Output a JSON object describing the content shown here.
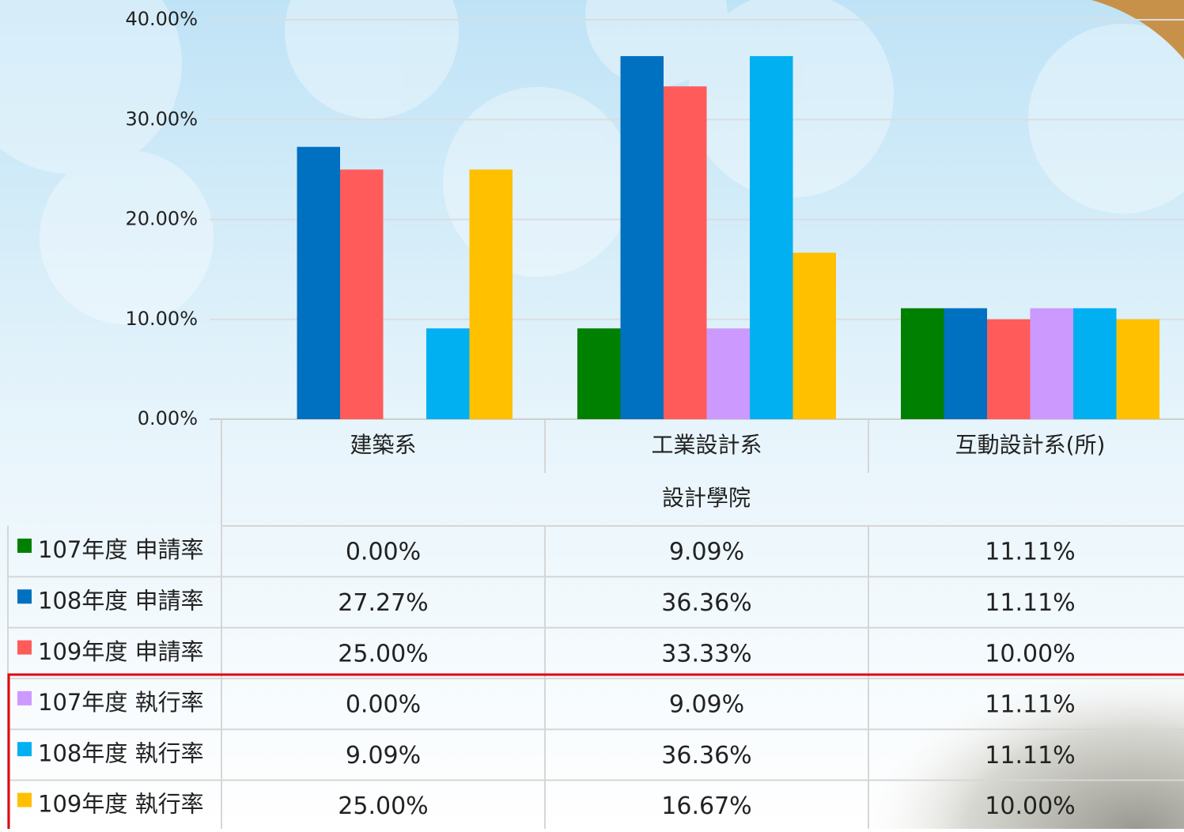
{
  "chart_data": {
    "type": "bar",
    "categories": [
      "建築系",
      "工業設計系",
      "互動設計系(所)"
    ],
    "group_label": "設計學院",
    "ylim": [
      0,
      40
    ],
    "yticks": [
      {
        "value": 0,
        "label": "0.00%"
      },
      {
        "value": 10,
        "label": "10.00%"
      },
      {
        "value": 20,
        "label": "20.00%"
      },
      {
        "value": 30,
        "label": "30.00%"
      },
      {
        "value": 40,
        "label": "40.00%"
      }
    ],
    "grid": true,
    "series": [
      {
        "name": "107年度 申請率",
        "color": "#008000",
        "values": [
          0,
          9.09,
          11.11
        ],
        "value_labels": [
          "0.00%",
          "9.09%",
          "11.11%"
        ]
      },
      {
        "name": "108年度 申請率",
        "color": "#0070c0",
        "values": [
          27.27,
          36.36,
          11.11
        ],
        "value_labels": [
          "27.27%",
          "36.36%",
          "11.11%"
        ]
      },
      {
        "name": "109年度 申請率",
        "color": "#ff5b5b",
        "values": [
          25,
          33.33,
          10
        ],
        "value_labels": [
          "25.00%",
          "33.33%",
          "10.00%"
        ]
      },
      {
        "name": "107年度 執行率",
        "color": "#cc99ff",
        "values": [
          0,
          9.09,
          11.11
        ],
        "value_labels": [
          "0.00%",
          "9.09%",
          "11.11%"
        ]
      },
      {
        "name": "108年度 執行率",
        "color": "#00b0f0",
        "values": [
          9.09,
          36.36,
          11.11
        ],
        "value_labels": [
          "9.09%",
          "36.36%",
          "11.11%"
        ]
      },
      {
        "name": "109年度 執行率",
        "color": "#ffc000",
        "values": [
          25,
          16.67,
          10
        ],
        "value_labels": [
          "25.00%",
          "16.67%",
          "10.00%"
        ]
      }
    ]
  }
}
